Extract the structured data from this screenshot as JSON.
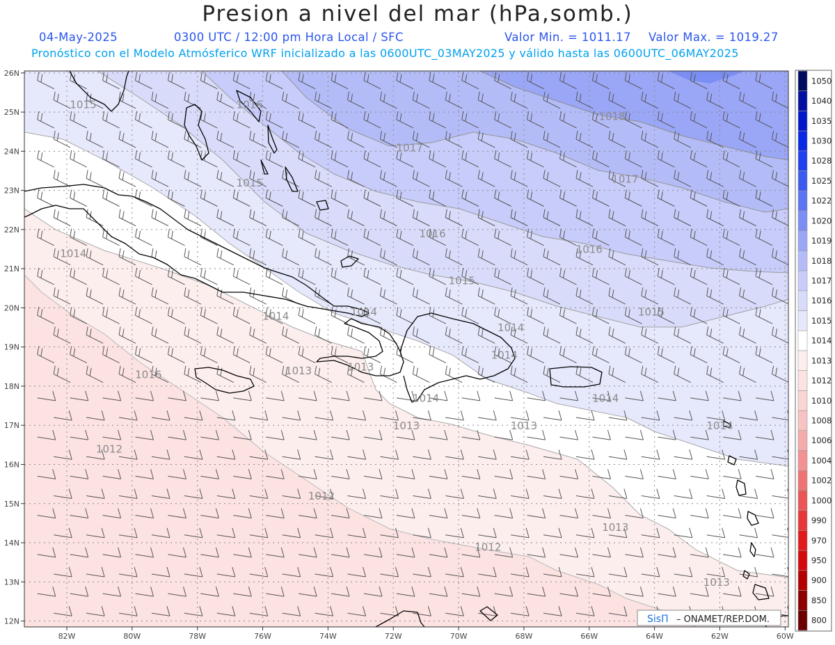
{
  "header": {
    "title": "Presion a nivel del mar (hPa,somb.)",
    "date": "04-May-2025",
    "time": "0300 UTC / 12:00 pm Hora Local / SFC",
    "min_label": "Valor Min. = 1011.17",
    "max_label": "Valor Max. = 1019.27",
    "subtitle": "Pronóstico con el Modelo Atmósferico WRF inicializado a las 0600UTC_03MAY2025 y válido hasta las  0600UTC_06MAY2025"
  },
  "axes": {
    "lat_labels": [
      "26N",
      "25N",
      "24N",
      "23N",
      "22N",
      "21N",
      "20N",
      "19N",
      "18N",
      "17N",
      "16N",
      "15N",
      "14N",
      "13N",
      "12N"
    ],
    "lon_labels": [
      "82W",
      "80W",
      "78W",
      "76W",
      "74W",
      "72W",
      "70W",
      "68W",
      "66W",
      "64W",
      "62W",
      "60W"
    ]
  },
  "contour_labels": [
    {
      "text": "1015",
      "lon": -81.5,
      "lat": 25.1
    },
    {
      "text": "1016",
      "lon": -76.4,
      "lat": 25.1
    },
    {
      "text": "1018",
      "lon": -65.3,
      "lat": 24.8
    },
    {
      "text": "1017",
      "lon": -71.5,
      "lat": 24.0
    },
    {
      "text": "1017",
      "lon": -64.9,
      "lat": 23.2
    },
    {
      "text": "1015",
      "lon": -76.4,
      "lat": 23.1
    },
    {
      "text": "1016",
      "lon": -70.8,
      "lat": 21.8
    },
    {
      "text": "1016",
      "lon": -66.0,
      "lat": 21.4
    },
    {
      "text": "1014",
      "lon": -81.8,
      "lat": 21.3
    },
    {
      "text": "1015",
      "lon": -69.9,
      "lat": 20.6
    },
    {
      "text": "1015",
      "lon": -64.1,
      "lat": 19.8
    },
    {
      "text": "1014",
      "lon": -75.6,
      "lat": 19.7
    },
    {
      "text": "1014",
      "lon": -72.9,
      "lat": 19.8
    },
    {
      "text": "1014",
      "lon": -68.4,
      "lat": 19.4
    },
    {
      "text": "1014",
      "lon": -68.6,
      "lat": 18.7
    },
    {
      "text": "1016",
      "lon": -79.5,
      "lat": 18.2
    },
    {
      "text": "1013",
      "lon": -74.9,
      "lat": 18.3
    },
    {
      "text": "1013",
      "lon": -73.0,
      "lat": 18.4
    },
    {
      "text": "1014",
      "lon": -71.0,
      "lat": 17.6
    },
    {
      "text": "1014",
      "lon": -65.5,
      "lat": 17.6
    },
    {
      "text": "1013",
      "lon": -71.6,
      "lat": 16.9
    },
    {
      "text": "1013",
      "lon": -68.0,
      "lat": 16.9
    },
    {
      "text": "1014",
      "lon": -62.0,
      "lat": 16.9
    },
    {
      "text": "1012",
      "lon": -80.7,
      "lat": 16.3
    },
    {
      "text": "1012",
      "lon": -74.2,
      "lat": 15.1
    },
    {
      "text": "1013",
      "lon": -65.2,
      "lat": 14.3
    },
    {
      "text": "1012",
      "lon": -69.1,
      "lat": 13.8
    },
    {
      "text": "1013",
      "lon": -62.1,
      "lat": 12.9
    }
  ],
  "legend": {
    "labels": [
      "1050",
      "1040",
      "1035",
      "1030",
      "1028",
      "1025",
      "1022",
      "1020",
      "1019",
      "1018",
      "1017",
      "1016",
      "1015",
      "1014",
      "1013",
      "1012",
      "1010",
      "1008",
      "1006",
      "1004",
      "1002",
      "1000",
      "990",
      "970",
      "950",
      "900",
      "850",
      "800"
    ],
    "colors": [
      "#000a5e",
      "#0010a0",
      "#0018c8",
      "#0a28e6",
      "#1e40f0",
      "#3a5af2",
      "#5a74f4",
      "#7a8ef4",
      "#9aa6f6",
      "#b4bcf8",
      "#c8ccfa",
      "#d8dcfa",
      "#e6e8fc",
      "#ffffff",
      "#fdeeee",
      "#fde2e2",
      "#fbd4d4",
      "#f8c2c2",
      "#f5abab",
      "#f29292",
      "#ee7474",
      "#ea5656",
      "#e63838",
      "#e01c1c",
      "#d20a0a",
      "#b40000",
      "#8c0000",
      "#6a0000"
    ]
  },
  "credit": {
    "logo_text": "SisΠ",
    "org": "– ONAMET/REP.DOM."
  },
  "map_bounds": {
    "lon_min": -83.3,
    "lon_max": -59.9,
    "lat_min": 11.85,
    "lat_max": 26.05
  }
}
